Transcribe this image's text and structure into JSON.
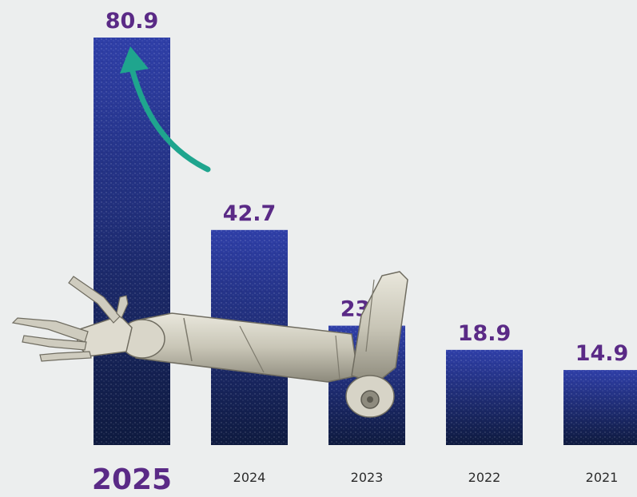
{
  "chart_data": {
    "type": "bar",
    "categories": [
      "2025",
      "2024",
      "2023",
      "2022",
      "2021"
    ],
    "values": [
      80.9,
      42.7,
      23.7,
      18.9,
      14.9
    ],
    "value_labels": [
      "80.9",
      "42.7",
      "23.7",
      "18.9",
      "14.9"
    ],
    "highlight_category": "2025",
    "title": "",
    "xlabel": "",
    "ylabel": "",
    "ylim": [
      0,
      80.9
    ],
    "grid": false,
    "legend": "none"
  },
  "colors": {
    "background": "#eceeee",
    "bar_top": "#2f3fa8",
    "bar_bottom": "#0e1a3f",
    "value_label": "#5a2a86",
    "year_label": "#2b2b2b",
    "arrow": "#1fa58e"
  },
  "icons": {
    "growth_arrow": "curved-arrow-icon",
    "robot_arm": "robot-arm-illustration"
  }
}
